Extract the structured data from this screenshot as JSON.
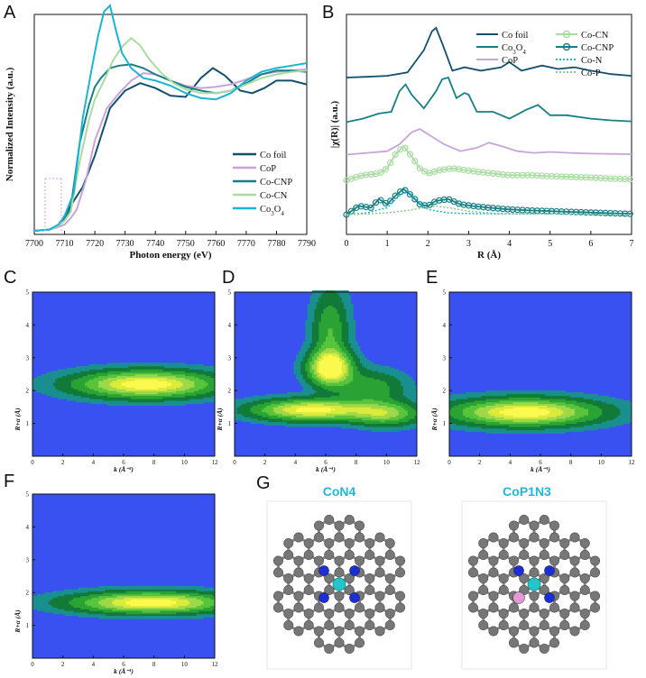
{
  "panels": {
    "A": "A",
    "B": "B",
    "C": "C",
    "D": "D",
    "E": "E",
    "F": "F",
    "G": "G"
  },
  "chart_data": [
    {
      "panel": "A",
      "type": "line",
      "xlabel": "Photon energy (eV)",
      "ylabel": "Normalized Intensity (a.u.)",
      "xlim": [
        7700,
        7790
      ],
      "xticks": [
        "7700",
        "7710",
        "7720",
        "7730",
        "7740",
        "7750",
        "7760",
        "7770",
        "7780",
        "7790"
      ],
      "ylim": [
        0,
        1.7
      ],
      "legend_position": "bottom-right",
      "series": [
        {
          "name": "Co foil",
          "color": "#12506e",
          "x": [
            7700,
            7705,
            7708,
            7710,
            7712,
            7716,
            7720,
            7725,
            7730,
            7735,
            7740,
            7745,
            7750,
            7755,
            7759,
            7763,
            7768,
            7772,
            7776,
            7780,
            7785,
            7790
          ],
          "y": [
            0.0,
            0.01,
            0.04,
            0.12,
            0.2,
            0.35,
            0.6,
            0.98,
            1.12,
            1.18,
            1.14,
            1.08,
            1.07,
            1.22,
            1.3,
            1.24,
            1.12,
            1.1,
            1.14,
            1.2,
            1.2,
            1.17
          ]
        },
        {
          "name": "CoP",
          "color": "#c9a4d8",
          "x": [
            7700,
            7705,
            7708,
            7710,
            7712,
            7714,
            7717,
            7720,
            7724,
            7728,
            7732,
            7736,
            7740,
            7745,
            7750,
            7755,
            7760,
            7765,
            7770,
            7775,
            7780,
            7785,
            7790
          ],
          "y": [
            0.0,
            0.01,
            0.03,
            0.05,
            0.1,
            0.17,
            0.4,
            0.72,
            0.98,
            1.1,
            1.2,
            1.26,
            1.25,
            1.2,
            1.16,
            1.14,
            1.15,
            1.17,
            1.21,
            1.25,
            1.27,
            1.28,
            1.29
          ]
        },
        {
          "name": "Co-CNP",
          "color": "#177f86",
          "x": [
            7700,
            7705,
            7708,
            7710,
            7712,
            7715,
            7718,
            7720,
            7722,
            7725,
            7728,
            7732,
            7736,
            7740,
            7745,
            7750,
            7755,
            7760,
            7765,
            7770,
            7775,
            7780,
            7785,
            7790
          ],
          "y": [
            0.0,
            0.01,
            0.05,
            0.1,
            0.18,
            0.7,
            1.0,
            1.15,
            1.22,
            1.3,
            1.32,
            1.33,
            1.3,
            1.25,
            1.2,
            1.15,
            1.12,
            1.1,
            1.12,
            1.18,
            1.25,
            1.28,
            1.28,
            1.27
          ]
        },
        {
          "name": "Co-CN",
          "color": "#a8dca0",
          "x": [
            7700,
            7705,
            7708,
            7710,
            7712,
            7715,
            7718,
            7720,
            7723,
            7726,
            7729,
            7732,
            7735,
            7738,
            7742,
            7746,
            7750,
            7755,
            7760,
            7765,
            7770,
            7775,
            7780,
            7785,
            7790
          ],
          "y": [
            0.0,
            0.01,
            0.04,
            0.08,
            0.15,
            0.55,
            0.88,
            1.05,
            1.2,
            1.36,
            1.47,
            1.54,
            1.48,
            1.37,
            1.26,
            1.18,
            1.13,
            1.1,
            1.1,
            1.12,
            1.17,
            1.22,
            1.25,
            1.27,
            1.28
          ]
        },
        {
          "name": "Co3O4",
          "label_main": "Co",
          "label_sub": "3",
          "label_mid": "O",
          "label_sub2": "4",
          "color": "#19b5d3",
          "x": [
            7700,
            7705,
            7708,
            7710,
            7713,
            7716,
            7719,
            7721,
            7723,
            7725,
            7727,
            7729,
            7732,
            7736,
            7740,
            7745,
            7750,
            7755,
            7760,
            7765,
            7770,
            7775,
            7780,
            7785,
            7790
          ],
          "y": [
            0.0,
            0.01,
            0.05,
            0.12,
            0.3,
            0.9,
            1.3,
            1.55,
            1.75,
            1.8,
            1.6,
            1.42,
            1.3,
            1.22,
            1.2,
            1.16,
            1.1,
            1.06,
            1.05,
            1.1,
            1.2,
            1.27,
            1.3,
            1.32,
            1.34
          ]
        }
      ]
    },
    {
      "panel": "B",
      "type": "line",
      "xlabel": "R (Å)",
      "ylabel": "|χ(R)| (a.u.)",
      "xlim": [
        0,
        7
      ],
      "xticks": [
        "0",
        "1",
        "2",
        "3",
        "4",
        "5",
        "6",
        "7"
      ],
      "legend_position": "top-right",
      "legend": [
        {
          "name": "Co foil",
          "color": "#12506e",
          "style": "line"
        },
        {
          "name": "Co3O4",
          "label_main": "Co",
          "label_sub": "3",
          "label_mid": "O",
          "label_sub2": "4",
          "color": "#177f86",
          "style": "line"
        },
        {
          "name": "CoP",
          "color": "#c9a4d8",
          "style": "line"
        },
        {
          "name": "Co-CN",
          "color": "#a8dca0",
          "style": "circle-line"
        },
        {
          "name": "Co-CNP",
          "color": "#177f86",
          "style": "circle-line"
        },
        {
          "name": "Co-N",
          "color": "#19b5d3",
          "style": "dotted"
        },
        {
          "name": "Co-P",
          "color": "#8fcc8a",
          "style": "dotted"
        }
      ],
      "series": [
        {
          "name": "Co foil",
          "offset": 4.0,
          "x": [
            0,
            0.5,
            1.0,
            1.5,
            1.9,
            2.1,
            2.2,
            2.35,
            2.6,
            2.9,
            3.3,
            3.8,
            4.0,
            4.3,
            4.8,
            5.2,
            5.6,
            6.0,
            6.5,
            7.0
          ],
          "y": [
            0.0,
            0.02,
            0.05,
            0.15,
            0.8,
            1.35,
            1.45,
            1.0,
            0.2,
            0.3,
            0.2,
            0.3,
            0.45,
            0.2,
            0.35,
            0.25,
            0.3,
            0.2,
            0.1,
            0.05
          ]
        },
        {
          "name": "Co3O4",
          "offset": 2.7,
          "x": [
            0,
            0.4,
            0.8,
            1.1,
            1.3,
            1.45,
            1.6,
            1.9,
            2.2,
            2.35,
            2.5,
            2.7,
            2.9,
            3.0,
            3.2,
            3.6,
            4.0,
            4.4,
            4.7,
            5.0,
            5.4,
            6.0,
            6.5,
            7.0
          ],
          "y": [
            0.0,
            0.1,
            0.25,
            0.3,
            0.9,
            1.1,
            0.8,
            0.4,
            0.9,
            1.25,
            1.3,
            0.7,
            0.85,
            0.8,
            0.3,
            0.3,
            0.1,
            0.35,
            0.5,
            0.2,
            0.2,
            0.1,
            0.05,
            0.02
          ]
        },
        {
          "name": "CoP",
          "offset": 1.75,
          "x": [
            0,
            0.5,
            1.0,
            1.3,
            1.6,
            1.8,
            2.0,
            2.4,
            2.8,
            3.2,
            3.5,
            3.8,
            4.2,
            4.6,
            5.0,
            5.5,
            6.0,
            6.5,
            7.0
          ],
          "y": [
            0.0,
            0.05,
            0.1,
            0.3,
            0.65,
            0.75,
            0.6,
            0.3,
            0.1,
            0.2,
            0.35,
            0.25,
            0.1,
            0.05,
            0.08,
            0.05,
            0.03,
            0.02,
            0.01
          ]
        },
        {
          "name": "Co-CN",
          "offset": 1.0,
          "x": [
            0,
            0.4,
            0.8,
            1.0,
            1.2,
            1.4,
            1.6,
            1.8,
            2.0,
            2.3,
            2.6,
            2.9,
            3.2,
            3.6,
            4.0,
            4.5,
            5.0,
            5.5,
            6.0,
            6.5,
            7.0
          ],
          "y": [
            0.0,
            0.15,
            0.2,
            0.35,
            0.75,
            1.0,
            0.7,
            0.35,
            0.2,
            0.3,
            0.35,
            0.3,
            0.25,
            0.2,
            0.15,
            0.15,
            0.12,
            0.1,
            0.08,
            0.05,
            0.03
          ]
        },
        {
          "name": "Co-CNP",
          "offset": 0.0,
          "x": [
            0,
            0.3,
            0.6,
            0.8,
            1.0,
            1.2,
            1.4,
            1.6,
            1.8,
            2.0,
            2.2,
            2.5,
            2.8,
            3.1,
            3.5,
            4.0,
            4.5,
            5.0,
            5.5,
            6.0,
            6.5,
            7.0
          ],
          "y": [
            0.0,
            0.25,
            0.2,
            0.45,
            0.3,
            0.55,
            0.75,
            0.55,
            0.3,
            0.25,
            0.4,
            0.45,
            0.3,
            0.25,
            0.2,
            0.15,
            0.12,
            0.1,
            0.08,
            0.06,
            0.04,
            0.02
          ]
        },
        {
          "name": "Co-N",
          "offset": 0.0,
          "dotted": true,
          "x": [
            0,
            0.5,
            1.0,
            1.3,
            1.5,
            1.7,
            2.0,
            2.5,
            3.0,
            4.0,
            5.0,
            6.0,
            7.0
          ],
          "y": [
            0.0,
            0.05,
            0.2,
            0.55,
            0.7,
            0.45,
            0.15,
            0.05,
            0.03,
            0.02,
            0.02,
            0.01,
            0.0
          ]
        },
        {
          "name": "Co-P",
          "offset": 0.0,
          "dotted": true,
          "x": [
            0,
            0.5,
            1.0,
            1.5,
            1.9,
            2.2,
            2.5,
            3.0,
            3.5,
            4.0,
            5.0,
            6.0,
            7.0
          ],
          "y": [
            0.0,
            0.02,
            0.05,
            0.12,
            0.2,
            0.25,
            0.2,
            0.1,
            0.05,
            0.03,
            0.02,
            0.01,
            0.0
          ]
        }
      ]
    },
    {
      "panel": "C",
      "type": "heatmap",
      "xlabel": "k (Å⁻²)",
      "ylabel": "R+α (Å)",
      "xlim": [
        0,
        12
      ],
      "ylim": [
        0,
        5
      ],
      "xticks": [
        "0",
        "2",
        "4",
        "6",
        "8",
        "10",
        "12"
      ],
      "yticks": [
        "1",
        "2",
        "3",
        "4",
        "5"
      ],
      "peaks": [
        {
          "k": 7.5,
          "R": 2.2,
          "sk": 3.2,
          "sR": 0.28,
          "amp": 1.0
        }
      ]
    },
    {
      "panel": "D",
      "type": "heatmap",
      "xlabel": "k (Å⁻¹)",
      "ylabel": "R+α (Å)",
      "xlim": [
        0,
        12
      ],
      "ylim": [
        0,
        5
      ],
      "xticks": [
        "0",
        "2",
        "4",
        "6",
        "8",
        "10",
        "12"
      ],
      "yticks": [
        "1",
        "2",
        "3",
        "4",
        "5"
      ],
      "peaks": [
        {
          "k": 5.0,
          "R": 1.42,
          "sk": 2.6,
          "sR": 0.22,
          "amp": 0.95
        },
        {
          "k": 6.3,
          "R": 2.7,
          "sk": 1.0,
          "sR": 0.35,
          "amp": 1.0
        },
        {
          "k": 6.3,
          "R": 3.8,
          "sk": 0.8,
          "sR": 0.9,
          "amp": 0.45
        },
        {
          "k": 10.0,
          "R": 1.3,
          "sk": 1.6,
          "sR": 0.25,
          "amp": 0.6
        },
        {
          "k": 9.0,
          "R": 2.1,
          "sk": 1.5,
          "sR": 0.35,
          "amp": 0.4
        }
      ]
    },
    {
      "panel": "E",
      "type": "heatmap",
      "xlabel": "k (Å⁻¹)",
      "ylabel": "R+α (Å)",
      "xlim": [
        0,
        12
      ],
      "ylim": [
        0,
        5
      ],
      "xticks": [
        "0",
        "2",
        "4",
        "6",
        "8",
        "10",
        "12"
      ],
      "yticks": [
        "1",
        "2",
        "3",
        "4",
        "5"
      ],
      "peaks": [
        {
          "k": 5.0,
          "R": 1.35,
          "sk": 3.3,
          "sR": 0.28,
          "amp": 1.0
        }
      ]
    },
    {
      "panel": "F",
      "type": "heatmap",
      "xlabel": "k (Å⁻¹)",
      "ylabel": "R+α (Å)",
      "xlim": [
        0,
        12
      ],
      "ylim": [
        0,
        5
      ],
      "xticks": [
        "0",
        "2",
        "4",
        "6",
        "8",
        "10",
        "12"
      ],
      "yticks": [
        "1",
        "2",
        "3",
        "4",
        "5"
      ],
      "peaks": [
        {
          "k": 7.8,
          "R": 1.7,
          "sk": 3.5,
          "sR": 0.22,
          "amp": 1.0
        }
      ]
    }
  ],
  "structures": [
    {
      "title": "CoN4",
      "hetero": "none"
    },
    {
      "title": "CoP1N3",
      "hetero": "P"
    }
  ],
  "colors": {
    "carbon": "#777777",
    "nitrogen": "#1c2fd6",
    "cobalt": "#22c6c9",
    "phosphorus": "#e39ad8",
    "bond": "#8a8a8a",
    "heatmap_bg": "#3851f0"
  }
}
